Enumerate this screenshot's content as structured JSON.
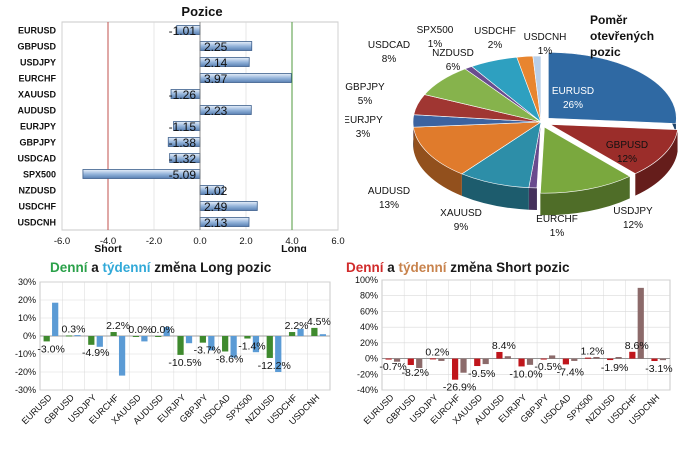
{
  "chart_data": [
    {
      "type": "bar",
      "orientation": "horizontal",
      "title": "Pozice",
      "categories": [
        "EURUSD",
        "GBPUSD",
        "USDJPY",
        "EURCHF",
        "XAUUSD",
        "AUDUSD",
        "EURJPY",
        "GBPJPY",
        "USDCAD",
        "SPX500",
        "NZDUSD",
        "USDCHF",
        "USDCNH"
      ],
      "values": [
        -1.01,
        2.25,
        2.14,
        3.97,
        -1.26,
        2.23,
        -1.15,
        -1.38,
        -1.32,
        -5.09,
        1.02,
        2.49,
        2.13
      ],
      "value_labels": [
        "-1.01",
        "2.25",
        "2.14",
        "3.97",
        "-1.26",
        "2.23",
        "-1.15",
        "-1.38",
        "-1.32",
        "-5.09",
        "1.02",
        "2.49",
        "2.13"
      ],
      "xlim": [
        -6.0,
        6.0
      ],
      "xticks": [
        "-6.0",
        "-4.0",
        "-2.0",
        "0.0",
        "2.0",
        "4.0",
        "6.0"
      ],
      "annotations": {
        "short": "Short",
        "long": "Long"
      },
      "colors": {
        "bar": "#8fb0d8",
        "bar_edge": "#3d5f8c",
        "short_line": "#c0504d",
        "long_line": "#4f9a3c"
      }
    },
    {
      "type": "pie",
      "title": "Poměr otevřených pozic",
      "slices": [
        {
          "label": "EURUSD",
          "value": 26,
          "text": "26%",
          "color": "#2f69a3"
        },
        {
          "label": "GBPUSD",
          "value": 12,
          "text": "12%",
          "color": "#9b2d2a"
        },
        {
          "label": "USDJPY",
          "value": 12,
          "text": "12%",
          "color": "#7aa83e"
        },
        {
          "label": "EURCHF",
          "value": 1,
          "text": "1%",
          "color": "#6a4b8e"
        },
        {
          "label": "XAUUSD",
          "value": 9,
          "text": "9%",
          "color": "#2d8ea8"
        },
        {
          "label": "AUDUSD",
          "value": 13,
          "text": "13%",
          "color": "#e07b2c"
        },
        {
          "label": "EURJPY",
          "value": 3,
          "text": "3%",
          "color": "#3c63a0"
        },
        {
          "label": "GBPJPY",
          "value": 5,
          "text": "5%",
          "color": "#a03632"
        },
        {
          "label": "USDCAD",
          "value": 8,
          "text": "8%",
          "color": "#86b34c"
        },
        {
          "label": "SPX500",
          "value": 1,
          "text": "1%",
          "color": "#6a4d8f"
        },
        {
          "label": "NZDUSD",
          "value": 6,
          "text": "6%",
          "color": "#2ea0c0"
        },
        {
          "label": "USDCHF",
          "value": 2,
          "text": "2%",
          "color": "#e8852f"
        },
        {
          "label": "USDCNH",
          "value": 1,
          "text": "1%",
          "color": "#b9cfe8"
        }
      ]
    },
    {
      "type": "bar",
      "title": {
        "part1": "Denní",
        "part2": " a ",
        "part3": "týdenní",
        "part4": " změna Long pozic"
      },
      "categories": [
        "EURUSD",
        "GBPUSD",
        "USDJPY",
        "EURCHF",
        "XAUUSD",
        "AUDUSD",
        "EURJPY",
        "GBPJPY",
        "USDCAD",
        "SPX500",
        "NZDUSD",
        "USDCHF",
        "USDCNH"
      ],
      "series": [
        {
          "values": [
            -3.0,
            0.3,
            -4.9,
            2.2,
            0.0,
            0.0,
            -10.5,
            -3.7,
            -8.6,
            -1.4,
            -12.2,
            2.2,
            4.5
          ],
          "color": "#3f8a2e"
        },
        {
          "values": [
            18.5,
            0.5,
            -6.0,
            -22.0,
            -3.0,
            5.0,
            -4.0,
            -8.0,
            -12.0,
            -9.0,
            -20.0,
            4.0,
            1.0
          ],
          "color": "#5b9bd5"
        }
      ],
      "value_labels": [
        "-3.0%",
        "0.3%",
        "-4.9%",
        "2.2%",
        "0.0%",
        "0.0%",
        "-10.5%",
        "-3.7%",
        "-8.6%",
        "-1.4%",
        "-12.2%",
        "2.2%",
        "4.5%"
      ],
      "ylim": [
        -30,
        30
      ],
      "yticks": [
        "-30%",
        "-20%",
        "-10%",
        "0%",
        "10%",
        "20%",
        "30%"
      ],
      "colors": {
        "title_daily": "#2ba14a",
        "title_weekly": "#31a9d8",
        "title_rest": "#1a1a1a"
      }
    },
    {
      "type": "bar",
      "title": {
        "part1": "Denní",
        "part2": " a ",
        "part3": "týdenní",
        "part4": " změna Short pozic"
      },
      "categories": [
        "EURUSD",
        "GBPUSD",
        "USDJPY",
        "EURCHF",
        "XAUUSD",
        "AUDUSD",
        "EURJPY",
        "GBPJPY",
        "USDCAD",
        "SPX500",
        "NZDUSD",
        "USDCHF",
        "USDCNH"
      ],
      "series": [
        {
          "values": [
            -0.7,
            -8.2,
            0.2,
            -26.9,
            -9.5,
            8.4,
            -10.0,
            -0.5,
            -7.4,
            1.2,
            -1.9,
            8.6,
            -3.1
          ],
          "color": "#c0151b"
        },
        {
          "values": [
            -4.0,
            -12.0,
            -3.0,
            -18.0,
            -7.0,
            3.0,
            -8.0,
            4.0,
            -3.0,
            2.0,
            2.0,
            90.0,
            -2.0
          ],
          "color": "#8c6a6a"
        }
      ],
      "value_labels": [
        "-0.7%",
        "-8.2%",
        "0.2%",
        "-26.9%",
        "-9.5%",
        "8.4%",
        "-10.0%",
        "-0.5%",
        "-7.4%",
        "1.2%",
        "-1.9%",
        "8.6%",
        "-3.1%"
      ],
      "ylim": [
        -40,
        100
      ],
      "yticks": [
        "-40%",
        "-20%",
        "0%",
        "20%",
        "40%",
        "60%",
        "80%",
        "100%"
      ],
      "colors": {
        "title_daily": "#d12b2b",
        "title_weekly": "#c8834d",
        "title_rest": "#1a1a1a"
      }
    }
  ]
}
